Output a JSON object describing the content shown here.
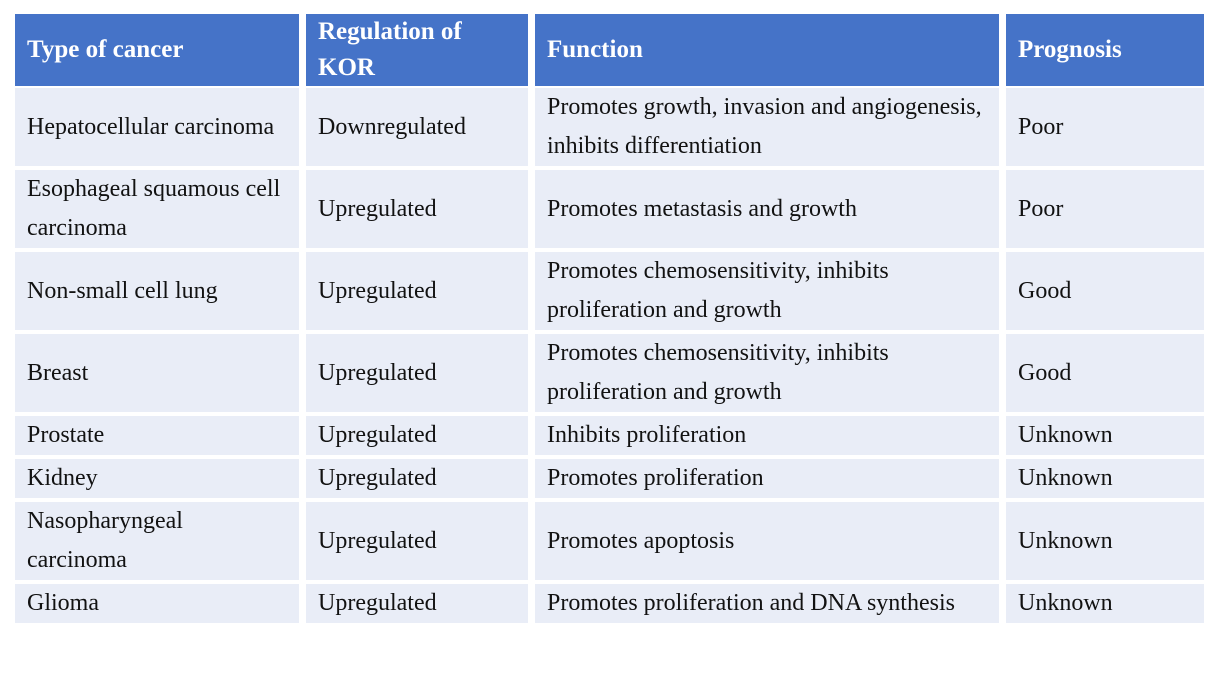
{
  "colors": {
    "header_bg": "#4573C8",
    "header_text": "#FFFFFF",
    "row_bg": "#E9EDF7",
    "body_text": "#121212",
    "grid": "#FFFFFF"
  },
  "table": {
    "columns": {
      "type": "Type of cancer",
      "regulation": "Regulation of KOR",
      "function": "Function",
      "prognosis": "Prognosis"
    },
    "rows": [
      {
        "type": "Hepatocellular carcinoma",
        "regulation": "Downregulated",
        "function": "Promotes growth, invasion and angiogenesis, inhibits differentiation",
        "prognosis": "Poor"
      },
      {
        "type": "Esophageal squamous cell carcinoma",
        "regulation": "Upregulated",
        "function": "Promotes metastasis and growth",
        "prognosis": "Poor"
      },
      {
        "type": "Non-small cell lung",
        "regulation": "Upregulated",
        "function": "Promotes chemosensitivity, inhibits proliferation and growth",
        "prognosis": "Good"
      },
      {
        "type": "Breast",
        "regulation": "Upregulated",
        "function": "Promotes chemosensitivity, inhibits proliferation and growth",
        "prognosis": "Good"
      },
      {
        "type": "Prostate",
        "regulation": "Upregulated",
        "function": "Inhibits proliferation",
        "prognosis": "Unknown"
      },
      {
        "type": "Kidney",
        "regulation": "Upregulated",
        "function": "Promotes proliferation",
        "prognosis": "Unknown"
      },
      {
        "type": "Nasopharyngeal carcinoma",
        "regulation": "Upregulated",
        "function": "Promotes apoptosis",
        "prognosis": "Unknown"
      },
      {
        "type": "Glioma",
        "regulation": "Upregulated",
        "function": "Promotes proliferation and DNA synthesis",
        "prognosis": "Unknown"
      }
    ]
  }
}
